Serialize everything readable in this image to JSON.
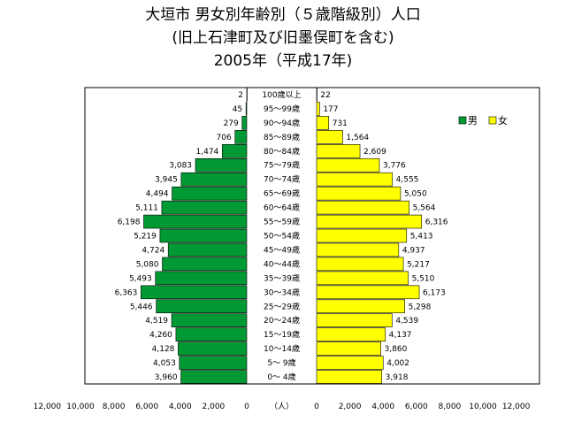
{
  "titles": {
    "line1": "大垣市 男女別年齢別（５歳階級別）人口",
    "line2": "(旧上石津町及び旧墨俣町を含む)",
    "line3": "2005年（平成17年)"
  },
  "chart_data": {
    "type": "bar",
    "orientation": "horizontal-pyramid",
    "categories": [
      "100歳以上",
      "95～99歳",
      "90～94歳",
      "85～89歳",
      "80～84歳",
      "75～79歳",
      "70～74歳",
      "65～69歳",
      "60～64歳",
      "55～59歳",
      "50～54歳",
      "45～49歳",
      "40～44歳",
      "35～39歳",
      "30～34歳",
      "25～29歳",
      "20～24歳",
      "15～19歳",
      "10～14歳",
      "5～ 9歳",
      "0～ 4歳"
    ],
    "series": [
      {
        "name": "男",
        "color": "#009933",
        "values": [
          2,
          45,
          279,
          706,
          1474,
          3083,
          3945,
          4494,
          5111,
          6198,
          5219,
          4724,
          5080,
          5493,
          6363,
          5446,
          4519,
          4260,
          4128,
          4053,
          3960
        ],
        "labels": [
          "2",
          "45",
          "279",
          "706",
          "1,474",
          "3,083",
          "3,945",
          "4,494",
          "5,111",
          "6,198",
          "5,219",
          "4,724",
          "5,080",
          "5,493",
          "6,363",
          "5,446",
          "4,519",
          "4,260",
          "4,128",
          "4,053",
          "3,960"
        ]
      },
      {
        "name": "女",
        "color": "#ffff00",
        "values": [
          22,
          177,
          731,
          1564,
          2609,
          3776,
          4555,
          5050,
          5564,
          6316,
          5413,
          4937,
          5217,
          5510,
          6173,
          5298,
          4539,
          4137,
          3860,
          4002,
          3918
        ],
        "labels": [
          "22",
          "177",
          "731",
          "1,564",
          "2,609",
          "3,776",
          "4,555",
          "5,050",
          "5,564",
          "6,316",
          "5,413",
          "4,937",
          "5,217",
          "5,510",
          "6,173",
          "5,298",
          "4,539",
          "4,137",
          "3,860",
          "4,002",
          "3,918"
        ]
      }
    ],
    "xlim": [
      0,
      12000
    ],
    "xticks_left": [
      "12,000",
      "10,000",
      "8,000",
      "6,000",
      "4,000",
      "2,000",
      "0"
    ],
    "xticks_right": [
      "0",
      "2,000",
      "4,000",
      "6,000",
      "8,000",
      "10,000",
      "12,000"
    ],
    "unit_label": "（人）",
    "legend": "top-right",
    "grid": false
  }
}
